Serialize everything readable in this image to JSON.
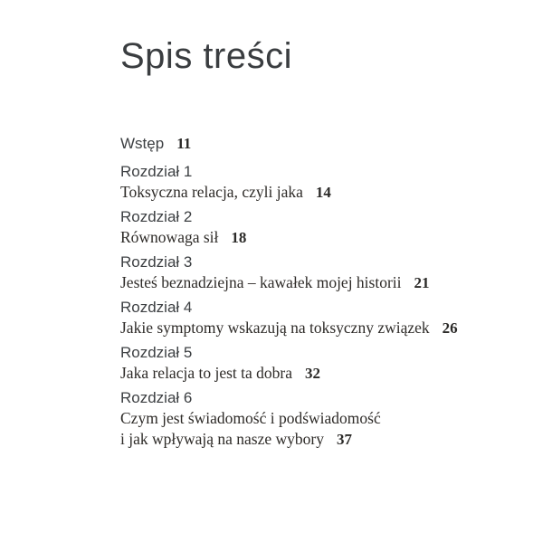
{
  "page": {
    "title": "Spis treści"
  },
  "toc": {
    "entries": [
      {
        "chapter": "Wstęp",
        "lines": [],
        "page": "11"
      },
      {
        "chapter": "Rozdział 1",
        "lines": [
          "Toksyczna relacja, czyli jaka"
        ],
        "page": "14"
      },
      {
        "chapter": "Rozdział 2",
        "lines": [
          "Równowaga sił"
        ],
        "page": "18"
      },
      {
        "chapter": "Rozdział 3",
        "lines": [
          "Jesteś beznadziejna – kawałek mojej historii"
        ],
        "page": "21"
      },
      {
        "chapter": "Rozdział 4",
        "lines": [
          "Jakie symptomy wskazują na toksyczny związek"
        ],
        "page": "26"
      },
      {
        "chapter": "Rozdział 5",
        "lines": [
          "Jaka relacja to jest ta dobra"
        ],
        "page": "32"
      },
      {
        "chapter": "Rozdział 6",
        "lines": [
          "Czym jest świadomość i podświadomość",
          "i jak wpływają na nasze wybory"
        ],
        "page": "37"
      }
    ]
  }
}
